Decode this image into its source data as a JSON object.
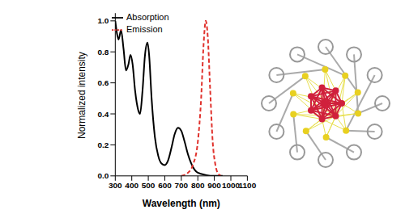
{
  "chart_data": {
    "type": "line",
    "xlabel": "Wavelength (nm)",
    "ylabel": "Normalized intensity",
    "xlim": [
      300,
      1100
    ],
    "xticks": [
      300,
      400,
      500,
      600,
      700,
      800,
      900,
      1000,
      1100
    ],
    "ylim": [
      0,
      1.05
    ],
    "yticks": [
      {
        "value": 0,
        "label": "0.0"
      },
      {
        "value": 0.2,
        "label": "0.2"
      },
      {
        "value": 0.4,
        "label": "0.4"
      },
      {
        "value": 0.6,
        "label": "0.6"
      },
      {
        "value": 0.8,
        "label": "0.8"
      },
      {
        "value": 1,
        "label": "1.0"
      }
    ],
    "legend": "top",
    "series": [
      {
        "name": "Absorption",
        "color": "#000000",
        "line_style": "solid",
        "x": [
          300,
          310,
          320,
          335,
          350,
          365,
          380,
          392,
          405,
          420,
          440,
          450,
          465,
          480,
          495,
          505,
          520,
          540,
          560,
          580,
          600,
          620,
          640,
          660,
          680,
          700,
          720,
          740,
          760,
          780,
          800,
          850,
          900,
          950
        ],
        "values": [
          1.0,
          0.92,
          0.88,
          0.94,
          0.82,
          0.68,
          0.72,
          0.78,
          0.72,
          0.55,
          0.42,
          0.4,
          0.55,
          0.78,
          0.86,
          0.78,
          0.5,
          0.25,
          0.13,
          0.08,
          0.07,
          0.1,
          0.18,
          0.27,
          0.31,
          0.29,
          0.22,
          0.14,
          0.08,
          0.04,
          0.02,
          0.005,
          0,
          0
        ]
      },
      {
        "name": "Emission",
        "color": "#e0312c",
        "line_style": "dashed",
        "x": [
          700,
          740,
          770,
          800,
          820,
          835,
          848,
          860,
          875,
          890,
          905,
          920,
          940
        ],
        "values": [
          0,
          0.02,
          0.07,
          0.22,
          0.5,
          0.85,
          1.0,
          0.9,
          0.55,
          0.22,
          0.08,
          0.02,
          0
        ]
      }
    ]
  }
}
